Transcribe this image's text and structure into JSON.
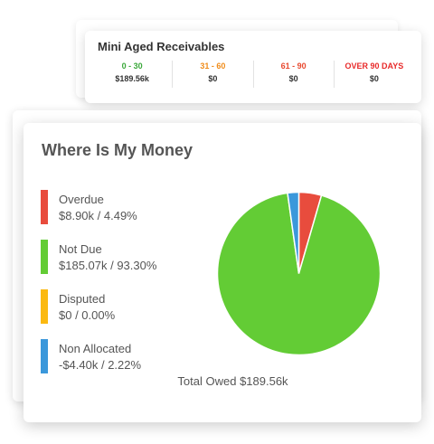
{
  "aged_receivables": {
    "title": "Mini Aged Receivables",
    "buckets": [
      {
        "label": "0 - 30",
        "value": "$189.56k",
        "color": "#3aa83a"
      },
      {
        "label": "31 - 60",
        "value": "$0",
        "color": "#f08c1a"
      },
      {
        "label": "61 - 90",
        "value": "$0",
        "color": "#e8492f"
      },
      {
        "label": "OVER 90 DAYS",
        "value": "$0",
        "color": "#e82a2a"
      }
    ]
  },
  "money": {
    "title": "Where Is My Money",
    "legend": [
      {
        "name": "Overdue",
        "value": "$8.90k / 4.49%",
        "color": "#e84c3d"
      },
      {
        "name": "Not Due",
        "value": "$185.07k / 93.30%",
        "color": "#63cc35"
      },
      {
        "name": "Disputed",
        "value": "$0 / 0.00%",
        "color": "#fbb911"
      },
      {
        "name": "Non Allocated",
        "value": "-$4.40k / 2.22%",
        "color": "#3b98db"
      }
    ],
    "total": "Total Owed $189.56k"
  },
  "chart_data": {
    "type": "pie",
    "categories": [
      "Overdue",
      "Not Due",
      "Disputed",
      "Non Allocated"
    ],
    "values": [
      4.49,
      93.3,
      0.0,
      2.22
    ],
    "colors": [
      "#e84c3d",
      "#63cc35",
      "#fbb911",
      "#3b98db"
    ]
  }
}
